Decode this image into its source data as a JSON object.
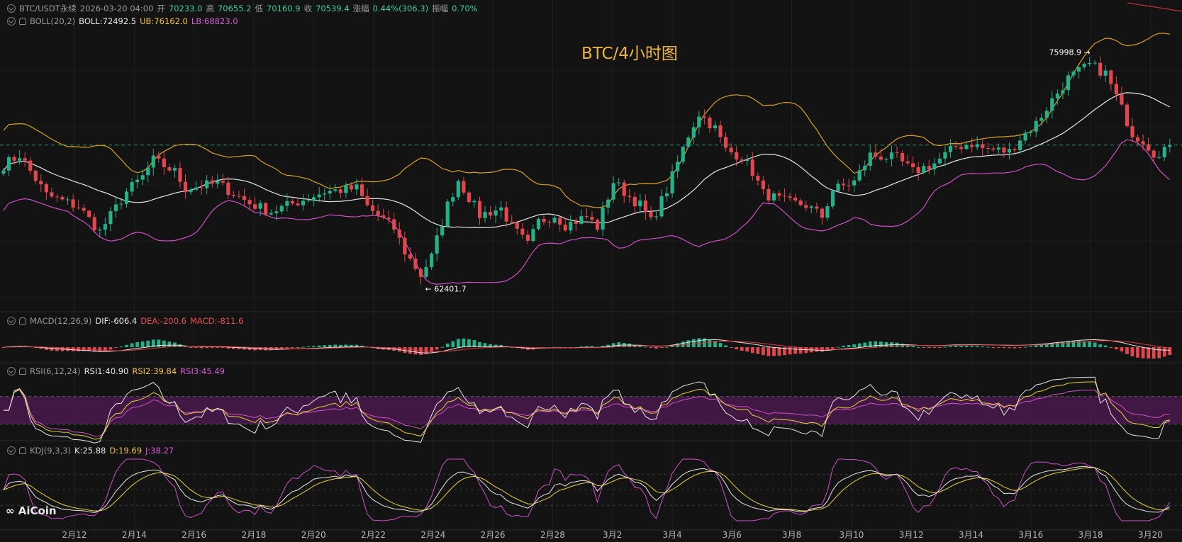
{
  "header": {
    "symbol": "BTC/USDT永续",
    "datetime": "2026-03-20 04:00",
    "open_label": "开",
    "open": "70233.0",
    "high_label": "高",
    "high": "70655.2",
    "low_label": "低",
    "low": "70160.9",
    "close_label": "收",
    "close": "70539.4",
    "change_label": "涨幅",
    "change": "0.44%(306.3)",
    "amp_label": "振幅",
    "amp": "0.70%"
  },
  "boll": {
    "name": "BOLL(20,2)",
    "mid": "BOLL:72492.5",
    "ub": "UB:76162.0",
    "lb": "LB:68823.0"
  },
  "macd": {
    "name": "MACD(12,26,9)",
    "dif": "DIF:-606.4",
    "dea": "DEA:-200.6",
    "macd": "MACD:-811.6"
  },
  "rsi": {
    "name": "RSI(6,12,24)",
    "rsi1": "RSI1:40.90",
    "rsi2": "RSI2:39.84",
    "rsi3": "RSI3:45.49"
  },
  "kdj": {
    "name": "KDJ(9,3,3)",
    "k": "K:25.88",
    "d": "D:19.69",
    "j": "J:38.27"
  },
  "chart_title": "BTC/4小时图",
  "logo": "AiCoin",
  "colors": {
    "up": "#26b08a",
    "down": "#e0474f",
    "boll_mid": "#e6e6e6",
    "boll_ub": "#d9a21d",
    "boll_lb": "#d14fc8",
    "rsi_band": "#4a1a4e",
    "bg": "#131313"
  },
  "chart_data": {
    "type": "candlestick",
    "title": "BTC/4小时图",
    "x_ticks": [
      "2月12",
      "2月14",
      "2月16",
      "2月18",
      "2月20",
      "2月22",
      "2月24",
      "2月26",
      "2月28",
      "3月2",
      "3月4",
      "3月6",
      "3月8",
      "3月10",
      "3月12",
      "3月14",
      "3月16",
      "3月18",
      "3月20"
    ],
    "annotations": {
      "max": "75998.9",
      "min": "62401.7"
    },
    "y_range": [
      60500,
      77500
    ],
    "anchors": [
      [
        0,
        69300
      ],
      [
        3,
        69900
      ],
      [
        8,
        67500
      ],
      [
        14,
        66800
      ],
      [
        18,
        65300
      ],
      [
        23,
        67700
      ],
      [
        26,
        68600
      ],
      [
        28,
        69600
      ],
      [
        32,
        68900
      ],
      [
        34,
        67900
      ],
      [
        40,
        68200
      ],
      [
        46,
        67000
      ],
      [
        50,
        66500
      ],
      [
        55,
        67100
      ],
      [
        60,
        67700
      ],
      [
        66,
        67900
      ],
      [
        68,
        66800
      ],
      [
        73,
        65500
      ],
      [
        75,
        64100
      ],
      [
        78,
        62700
      ],
      [
        80,
        63800
      ],
      [
        83,
        66900
      ],
      [
        85,
        68400
      ],
      [
        89,
        66300
      ],
      [
        93,
        66700
      ],
      [
        95,
        65600
      ],
      [
        98,
        64500
      ],
      [
        100,
        65900
      ],
      [
        103,
        66300
      ],
      [
        105,
        65700
      ],
      [
        109,
        66200
      ],
      [
        111,
        65600
      ],
      [
        114,
        68300
      ],
      [
        117,
        67400
      ],
      [
        119,
        66900
      ],
      [
        121,
        65900
      ],
      [
        124,
        67800
      ],
      [
        128,
        71100
      ],
      [
        130,
        72400
      ],
      [
        133,
        71500
      ],
      [
        135,
        70200
      ],
      [
        138,
        69800
      ],
      [
        140,
        68900
      ],
      [
        142,
        67600
      ],
      [
        146,
        67100
      ],
      [
        150,
        66900
      ],
      [
        153,
        66200
      ],
      [
        155,
        67800
      ],
      [
        159,
        68300
      ],
      [
        162,
        69900
      ],
      [
        167,
        69700
      ],
      [
        170,
        68900
      ],
      [
        174,
        69400
      ],
      [
        178,
        70400
      ],
      [
        181,
        70600
      ],
      [
        183,
        70300
      ],
      [
        188,
        70100
      ],
      [
        190,
        70900
      ],
      [
        193,
        71800
      ],
      [
        196,
        73200
      ],
      [
        199,
        74500
      ],
      [
        203,
        75300
      ],
      [
        206,
        74800
      ],
      [
        208,
        73400
      ],
      [
        211,
        71200
      ],
      [
        213,
        70800
      ],
      [
        216,
        69700
      ],
      [
        218,
        70500
      ]
    ]
  }
}
